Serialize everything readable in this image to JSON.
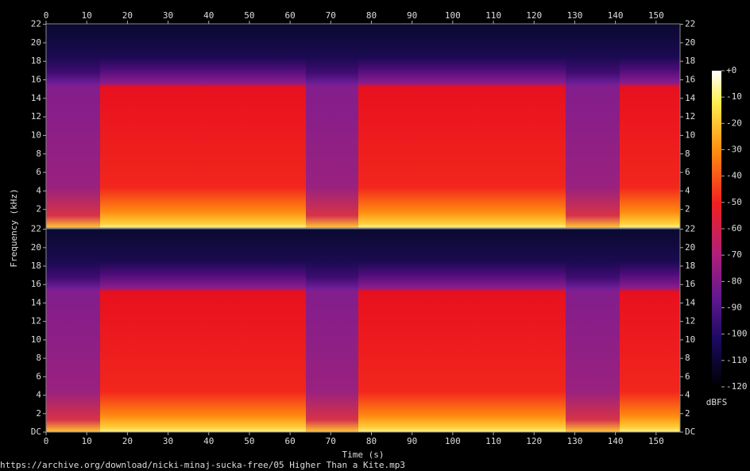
{
  "chart_data": {
    "type": "spectrogram",
    "xlabel": "Time (s)",
    "ylabel": "Frequency (kHz)",
    "xlim": [
      0,
      155.9
    ],
    "xticks": [
      0,
      10,
      20,
      30,
      40,
      50,
      60,
      70,
      80,
      90,
      100,
      110,
      120,
      130,
      140,
      150
    ],
    "channels": [
      {
        "ylim": [
          0,
          22.05
        ],
        "yticks": [
          2,
          4,
          6,
          8,
          10,
          12,
          14,
          16,
          18,
          20,
          22
        ]
      },
      {
        "ylim": [
          0,
          22.05
        ],
        "yticks": [
          {
            "value": 0,
            "label": "DC"
          },
          2,
          4,
          6,
          8,
          10,
          12,
          14,
          16,
          18,
          20,
          22
        ]
      }
    ],
    "colorbar": {
      "label": "dBFS",
      "lim": [
        -120,
        0
      ],
      "ticks": [
        {
          "value": 0,
          "label": "+0"
        },
        -10,
        -20,
        -30,
        -40,
        -50,
        -60,
        -70,
        -80,
        -90,
        -100,
        -110,
        -120
      ]
    },
    "footer": "https://archive.org/download/nicki-minaj-sucka-free/05 Higher Than a Kite.mp3"
  }
}
